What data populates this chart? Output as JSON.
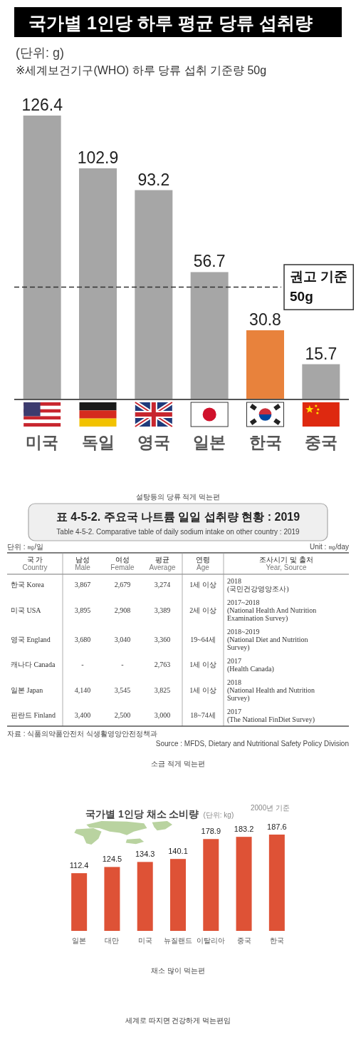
{
  "chart_data": [
    {
      "type": "bar",
      "title": "국가별 1인당 하루 평균 당류 섭취량",
      "subtitle": "(단위: g)",
      "categories": [
        "미국",
        "독일",
        "영국",
        "일본",
        "한국",
        "중국"
      ],
      "values": [
        126.4,
        102.9,
        93.2,
        56.7,
        30.8,
        15.7
      ],
      "colors": [
        "#a6a6a6",
        "#a6a6a6",
        "#a6a6a6",
        "#a6a6a6",
        "#e8823c",
        "#a6a6a6"
      ],
      "data_labels": true,
      "ref_lines": [
        {
          "axis": "y",
          "value": 50,
          "label": "권고 기준\n50g",
          "line_style": "dashed",
          "color": "#333333"
        }
      ],
      "annotations": [
        "※세계보건기구(WHO) 하루 당류 섭취 기준량 50g",
        "설탕등의 당류 적게 먹는편"
      ]
    },
    {
      "type": "other",
      "title": "표 4-5-2. 주요국 나트륨 일일 섭취량 현황 : 2019",
      "subtitle": "Table 4-5-2. Comparative table of daily sodium intake on other country : 2019",
      "categories": [
        "국 가\nCountry",
        "남성\nMale",
        "여성\nFemale",
        "평균\nAverage",
        "연령\nAge",
        "조사시기 및 출처\nYear, Source"
      ],
      "y_categories": [
        "한국 Korea",
        "미국 USA",
        "영국 England",
        "캐나다 Canada",
        "일본 Japan",
        "핀란드 Finland"
      ],
      "cell_labels": [
        [
          "3,867",
          "2,679",
          "3,274",
          "1세 이상",
          "2018\n(국민건강영양조사)"
        ],
        [
          "3,895",
          "2,908",
          "3,389",
          "2세 이상",
          "2017~2018\n(National Health And Nutrition\nExamination Survey)"
        ],
        [
          "3,680",
          "3,040",
          "3,360",
          "19~64세",
          "2018~2019\n(National Diet and Nutrition\nSurvey)"
        ],
        [
          "-",
          "-",
          "2,763",
          "1세 이상",
          "2017\n(Health Canada)"
        ],
        [
          "4,140",
          "3,545",
          "3,825",
          "1세 이상",
          "2018\n(National Health and Nutrition\nSurvey)"
        ],
        [
          "3,400",
          "2,500",
          "3,000",
          "18~74세",
          "2017\n(The National FinDiet Survey)"
        ]
      ],
      "annotations": [
        "단위 : ㎎/일",
        "Unit : ㎎/day",
        "자료 : 식품의약품안전처 식생활영양안전정책과",
        "Source : MFDS, Dietary and Nutritional Safety Policy Division",
        "소금 적게 먹는편"
      ]
    },
    {
      "type": "bar",
      "title": "국가별 1인당 채소 소비량",
      "subtitle": "(단위: kg)",
      "categories": [
        "일본",
        "대만",
        "미국",
        "뉴질랜드",
        "이탈리아",
        "중국",
        "한국"
      ],
      "values": [
        112.4,
        124.5,
        134.3,
        140.1,
        178.9,
        183.2,
        187.6
      ],
      "color": "#de5236",
      "data_labels": true,
      "annotations": [
        "2000년 기준",
        "채소 많이 먹는편",
        "세계로 따지면 건강하게 먹는편임"
      ]
    }
  ]
}
